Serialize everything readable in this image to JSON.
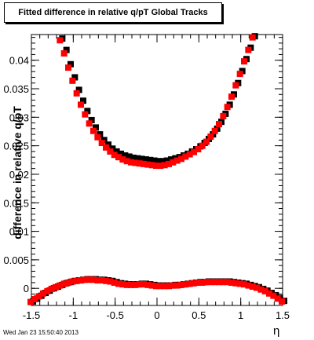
{
  "title": "Fitted difference in relative q/pT  Global Tracks",
  "datestamp": "Wed Jan 23 15:50:40 2013",
  "chart_data": {
    "type": "scatter",
    "title": "Fitted difference in relative q/pT  Global Tracks",
    "xlabel": "η",
    "ylabel": "difference in relative q/pT",
    "xlim": [
      -1.5,
      1.5
    ],
    "ylim": [
      -0.003,
      0.0445
    ],
    "xticks": [
      -1.5,
      -1,
      -0.5,
      0,
      0.5,
      1,
      1.5
    ],
    "xtick_labels": [
      "-1.5",
      "-1",
      "-0.5",
      "0",
      "0.5",
      "1",
      "1.5"
    ],
    "yticks": [
      0,
      0.005,
      0.01,
      0.015,
      0.02,
      0.025,
      0.03,
      0.035,
      0.04
    ],
    "ytick_labels": [
      "0",
      "0.005",
      "0.01",
      "0.015",
      "0.02",
      "0.025",
      "0.03",
      "0.035",
      "0.04"
    ],
    "marker": "square",
    "grid": false,
    "legend": "none",
    "series": [
      {
        "color": "#000000",
        "x": [
          -1.15,
          -1.1,
          -1.05,
          -1.0,
          -0.95,
          -0.9,
          -0.85,
          -0.8,
          -0.75,
          -0.7,
          -0.65,
          -0.6,
          -0.55,
          -0.5,
          -0.45,
          -0.4,
          -0.35,
          -0.3,
          -0.25,
          -0.2,
          -0.15,
          -0.1,
          -0.05,
          0.0,
          0.05,
          0.1,
          0.15,
          0.2,
          0.25,
          0.3,
          0.35,
          0.4,
          0.45,
          0.5,
          0.55,
          0.6,
          0.65,
          0.7,
          0.75,
          0.8,
          0.85,
          0.9,
          0.95,
          1.0,
          1.05,
          1.1,
          1.15
        ],
        "y": [
          0.0438,
          0.0418,
          0.0393,
          0.037,
          0.0348,
          0.0329,
          0.0311,
          0.0295,
          0.0282,
          0.027,
          0.026,
          0.0252,
          0.0245,
          0.024,
          0.0236,
          0.0233,
          0.0231,
          0.0229,
          0.0228,
          0.0227,
          0.0226,
          0.0225,
          0.0224,
          0.0223,
          0.0223,
          0.0224,
          0.0226,
          0.0228,
          0.023,
          0.0233,
          0.0236,
          0.024,
          0.0244,
          0.0249,
          0.0255,
          0.0262,
          0.027,
          0.028,
          0.0292,
          0.0306,
          0.0322,
          0.034,
          0.036,
          0.0381,
          0.0402,
          0.0422,
          0.0442
        ]
      },
      {
        "color": "#ff0000",
        "x": [
          -1.15,
          -1.1,
          -1.05,
          -1.0,
          -0.95,
          -0.9,
          -0.85,
          -0.8,
          -0.75,
          -0.7,
          -0.65,
          -0.6,
          -0.55,
          -0.5,
          -0.45,
          -0.4,
          -0.35,
          -0.3,
          -0.25,
          -0.2,
          -0.15,
          -0.1,
          -0.05,
          0.0,
          0.05,
          0.1,
          0.15,
          0.2,
          0.25,
          0.3,
          0.35,
          0.4,
          0.45,
          0.5,
          0.55,
          0.6,
          0.65,
          0.7,
          0.75,
          0.8,
          0.85,
          0.9,
          0.95,
          1.0,
          1.05,
          1.1,
          1.15
        ],
        "y": [
          0.0435,
          0.0412,
          0.0387,
          0.0364,
          0.0342,
          0.0322,
          0.0305,
          0.0289,
          0.0276,
          0.0265,
          0.0255,
          0.0247,
          0.024,
          0.0234,
          0.023,
          0.0226,
          0.0223,
          0.0221,
          0.022,
          0.0219,
          0.0218,
          0.0217,
          0.0216,
          0.0215,
          0.0215,
          0.0216,
          0.0218,
          0.0221,
          0.0224,
          0.0227,
          0.0231,
          0.0235,
          0.0239,
          0.0244,
          0.025,
          0.0257,
          0.0266,
          0.0276,
          0.0288,
          0.0302,
          0.0318,
          0.0336,
          0.0356,
          0.0376,
          0.0398,
          0.0418,
          0.044
        ]
      },
      {
        "color": "#000000",
        "x": [
          -1.5,
          -1.45,
          -1.4,
          -1.35,
          -1.3,
          -1.25,
          -1.2,
          -1.15,
          -1.1,
          -1.05,
          -1.0,
          -0.95,
          -0.9,
          -0.85,
          -0.8,
          -0.75,
          -0.7,
          -0.65,
          -0.6,
          -0.55,
          -0.5,
          -0.45,
          -0.4,
          -0.35,
          -0.3,
          -0.25,
          -0.2,
          -0.15,
          -0.1,
          -0.05,
          0.0,
          0.05,
          0.1,
          0.15,
          0.2,
          0.25,
          0.3,
          0.35,
          0.4,
          0.45,
          0.5,
          0.55,
          0.6,
          0.65,
          0.7,
          0.75,
          0.8,
          0.85,
          0.9,
          0.95,
          1.0,
          1.05,
          1.1,
          1.15,
          1.2,
          1.25,
          1.3,
          1.35,
          1.4,
          1.45,
          1.5
        ],
        "y": [
          -0.0023,
          -0.0018,
          -0.0013,
          -0.0008,
          -0.0004,
          0.0,
          0.0003,
          0.0006,
          0.0009,
          0.0011,
          0.0013,
          0.0014,
          0.0015,
          0.0016,
          0.0016,
          0.0016,
          0.0015,
          0.0015,
          0.0014,
          0.0013,
          0.0011,
          0.0009,
          0.0008,
          0.0007,
          0.0007,
          0.0007,
          0.0008,
          0.0008,
          0.0007,
          0.0006,
          0.0005,
          0.0005,
          0.0005,
          0.0005,
          0.0006,
          0.0006,
          0.0007,
          0.0008,
          0.0009,
          0.001,
          0.0011,
          0.0011,
          0.0012,
          0.0012,
          0.0012,
          0.0012,
          0.0012,
          0.0012,
          0.0011,
          0.001,
          0.0009,
          0.0008,
          0.0006,
          0.0004,
          0.0002,
          -0.0001,
          -0.0004,
          -0.0008,
          -0.0012,
          -0.0017,
          -0.0022
        ]
      },
      {
        "color": "#ff0000",
        "x": [
          -1.5,
          -1.45,
          -1.4,
          -1.35,
          -1.3,
          -1.25,
          -1.2,
          -1.15,
          -1.1,
          -1.05,
          -1.0,
          -0.95,
          -0.9,
          -0.85,
          -0.8,
          -0.75,
          -0.7,
          -0.65,
          -0.6,
          -0.55,
          -0.5,
          -0.45,
          -0.4,
          -0.35,
          -0.3,
          -0.25,
          -0.2,
          -0.15,
          -0.1,
          -0.05,
          0.0,
          0.05,
          0.1,
          0.15,
          0.2,
          0.25,
          0.3,
          0.35,
          0.4,
          0.45,
          0.5,
          0.55,
          0.6,
          0.65,
          0.7,
          0.75,
          0.8,
          0.85,
          0.9,
          0.95,
          1.0,
          1.05,
          1.1,
          1.15,
          1.2,
          1.25,
          1.3,
          1.35,
          1.4,
          1.45,
          1.5
        ],
        "y": [
          -0.0024,
          -0.0019,
          -0.0014,
          -0.0009,
          -0.0005,
          -0.0001,
          0.0002,
          0.0005,
          0.0008,
          0.001,
          0.0012,
          0.0013,
          0.0014,
          0.0015,
          0.0015,
          0.0015,
          0.0014,
          0.0014,
          0.0013,
          0.0012,
          0.001,
          0.0008,
          0.0007,
          0.0006,
          0.0006,
          0.0006,
          0.0007,
          0.0007,
          0.0006,
          0.0005,
          0.0004,
          0.0004,
          0.0004,
          0.0004,
          0.0005,
          0.0005,
          0.0006,
          0.0007,
          0.0008,
          0.0009,
          0.001,
          0.001,
          0.0011,
          0.0011,
          0.0011,
          0.0011,
          0.0011,
          0.0011,
          0.001,
          0.0009,
          0.0008,
          0.0007,
          0.0005,
          0.0003,
          0.0001,
          -0.0002,
          -0.0005,
          -0.0009,
          -0.0013,
          -0.0018,
          -0.0023
        ]
      }
    ]
  }
}
